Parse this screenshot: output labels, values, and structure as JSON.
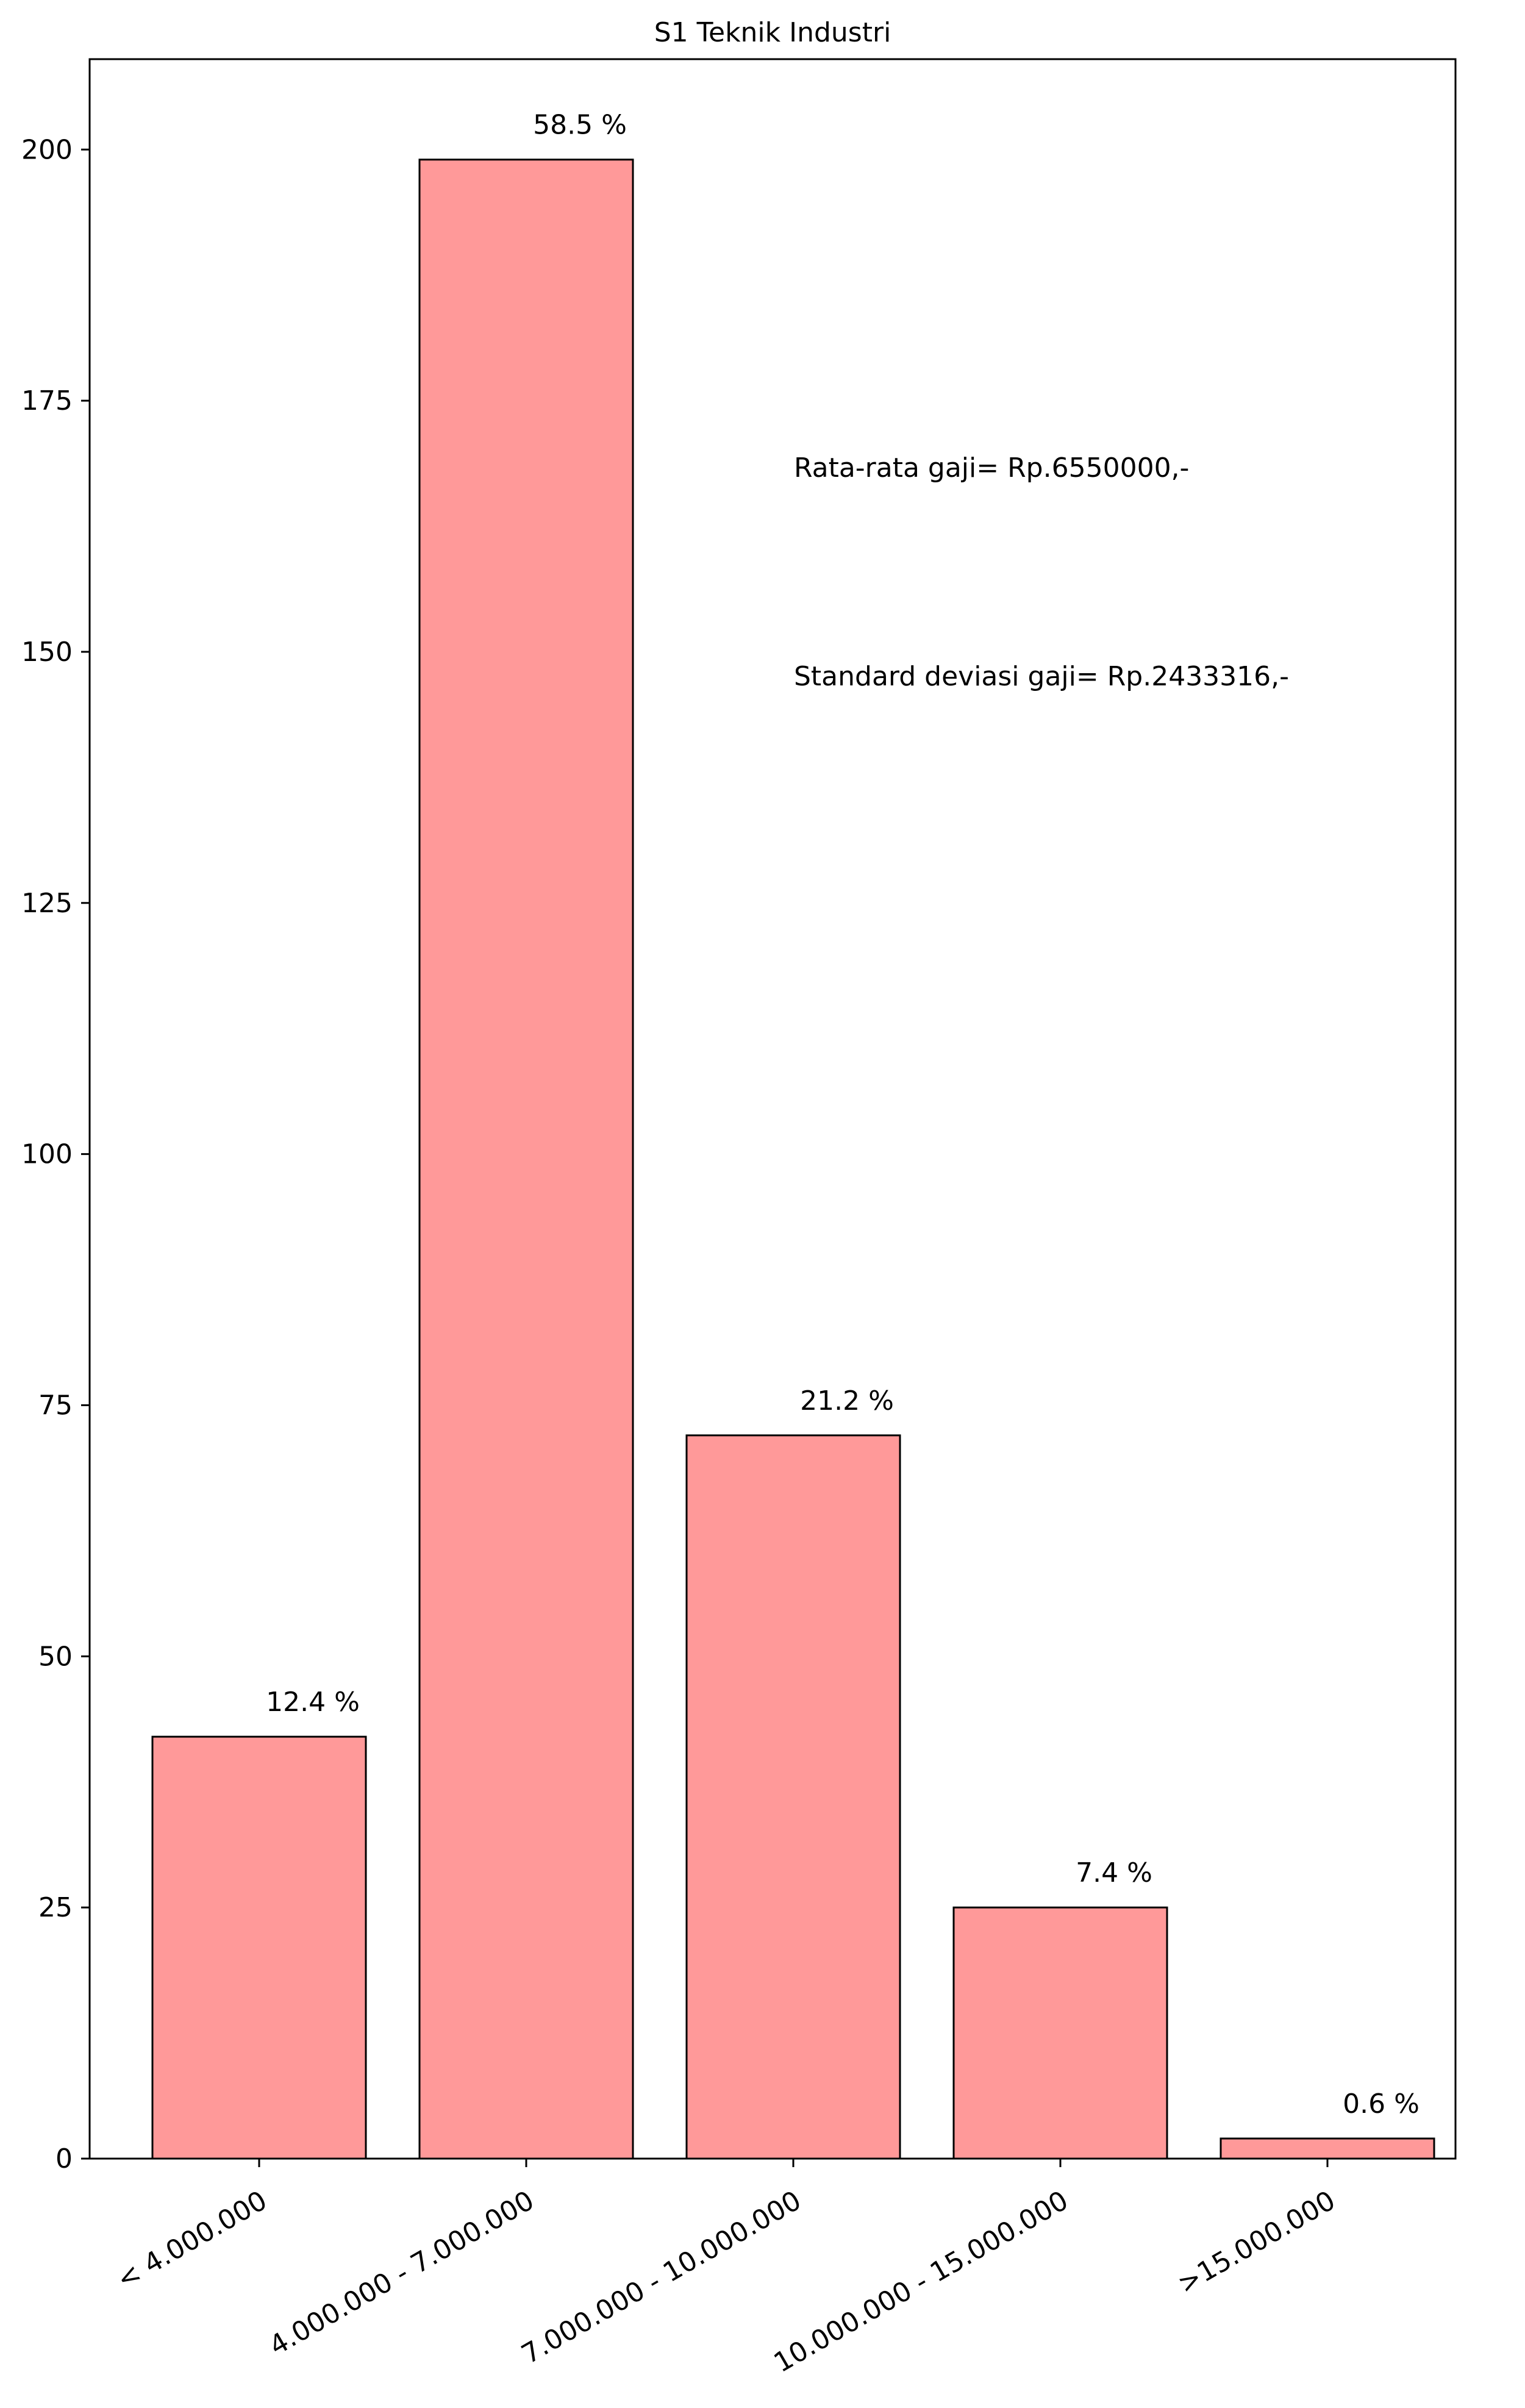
{
  "chart_data": {
    "type": "bar",
    "title": "S1 Teknik Industri",
    "xlabel": "",
    "ylabel": "",
    "categories": [
      "< 4.000.000",
      "4.000.000 - 7.000.000",
      "7.000.000 - 10.000.000",
      "10.000.000 - 15.000.000",
      ">15.000.000"
    ],
    "values": [
      42,
      199,
      72,
      25,
      2
    ],
    "data_labels": [
      "12.4 %",
      "58.5 %",
      "21.2 %",
      "7.4 %",
      "0.6 %"
    ],
    "ylim": [
      0,
      209
    ],
    "yticks": [
      0,
      25,
      50,
      75,
      100,
      125,
      150,
      175,
      200
    ],
    "grid": false,
    "bar_color": "#ff9999",
    "edge_color": "#000000",
    "annotations": [
      "Rata-rata gaji= Rp.6550000,-",
      "Standard deviasi gaji= Rp.2433316,-"
    ]
  }
}
